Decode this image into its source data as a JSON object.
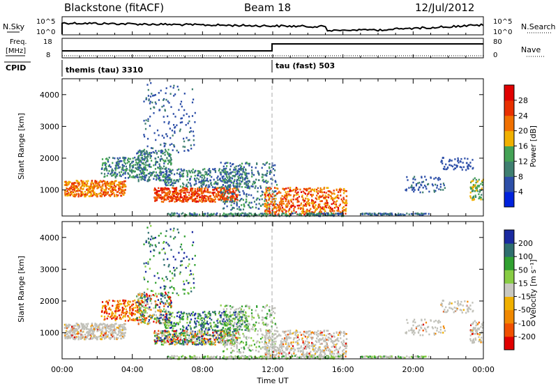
{
  "header": {
    "station": "Blackstone (fitACF)",
    "beam": "Beam 18",
    "date": "12/Jul/2012"
  },
  "noise_panel": {
    "left_label": "N.Sky",
    "right_label": "N.Search",
    "left_ticks": [
      "10^5",
      "10^0"
    ],
    "right_ticks": [
      "10^5",
      "10^0"
    ]
  },
  "freq_panel": {
    "left_label_1": "Freq.",
    "left_label_2": "[MHz]",
    "right_label": "Nave",
    "left_ticks": [
      "18",
      "8"
    ],
    "right_ticks": [
      "80",
      "0"
    ]
  },
  "cpid_panel": {
    "label": "CPID",
    "modes": [
      {
        "text": "themis (tau) 3310",
        "start_hour": 0.0
      },
      {
        "text": "tau (fast) 503",
        "start_hour": 12.0
      }
    ]
  },
  "colors": {
    "power_scale": [
      "#0022dd",
      "#2d4fa8",
      "#3f7f70",
      "#44a255",
      "#f0b000",
      "#f07000",
      "#e83000",
      "#e00000"
    ],
    "velocity_scale": [
      "#e00000",
      "#f05000",
      "#f08800",
      "#f0b000",
      "#c8c8c0",
      "#88cc44",
      "#30a030",
      "#2f6f6f",
      "#1a2aa0"
    ],
    "ground_scatter": "#c0c0b8"
  },
  "chart_data": [
    {
      "type": "heatmap",
      "name": "power-panel",
      "ylabel": "Slant Range [km]",
      "ylim": [
        180,
        4500
      ],
      "yticks": [
        "1000",
        "2000",
        "3000",
        "4000"
      ],
      "ytick_values": [
        1000,
        2000,
        3000,
        4000
      ],
      "xlim": [
        0,
        24
      ],
      "colorbar": {
        "label": "Power [dB]",
        "range": [
          0,
          32
        ],
        "ticks": [
          "4",
          "8",
          "12",
          "16",
          "20",
          "24",
          "28"
        ],
        "tick_values": [
          4,
          8,
          12,
          16,
          20,
          24,
          28
        ]
      }
    },
    {
      "type": "heatmap",
      "name": "velocity-panel",
      "ylabel": "Slant Range [km]",
      "ylim": [
        180,
        4500
      ],
      "yticks": [
        "1000",
        "2000",
        "3000",
        "4000"
      ],
      "ytick_values": [
        1000,
        2000,
        3000,
        4000
      ],
      "xlim": [
        0,
        24
      ],
      "xlabel": "Time UT",
      "xticks": [
        "00:00",
        "04:00",
        "08:00",
        "12:00",
        "16:00",
        "20:00",
        "00:00"
      ],
      "xtick_values": [
        0,
        4,
        8,
        12,
        16,
        20,
        24
      ],
      "colorbar": {
        "label": "Velocity [m s⁻¹]",
        "ticks": [
          "200",
          "100",
          "50",
          "15",
          "-15",
          "-50",
          "-100",
          "-200"
        ]
      }
    }
  ]
}
